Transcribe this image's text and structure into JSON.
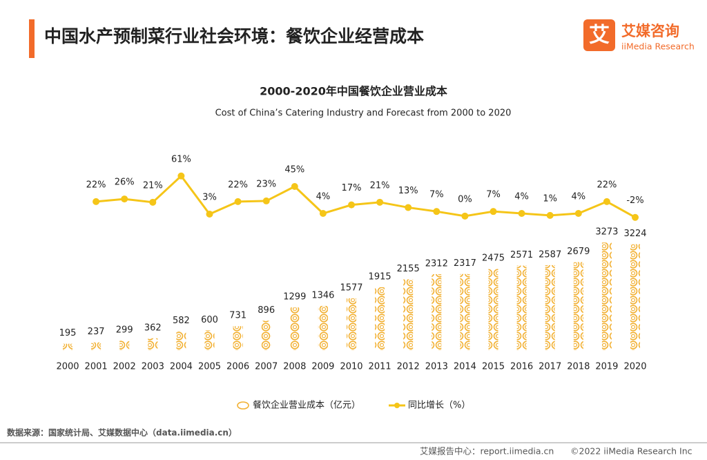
{
  "header": {
    "title": "中国水产预制菜行业社会环境：餐饮企业经营成本",
    "logo_icon": "艾",
    "logo_name": "艾媒咨询",
    "logo_sub": "iiMedia Research"
  },
  "chart_data": {
    "type": "bar-line",
    "title": "2000-2020年中国餐饮企业营业成本",
    "subtitle": "Cost of China’s Catering Industry and Forecast from 2000 to 2020",
    "categories": [
      "2000",
      "2001",
      "2002",
      "2003",
      "2004",
      "2005",
      "2006",
      "2007",
      "2008",
      "2009",
      "2010",
      "2011",
      "2012",
      "2013",
      "2014",
      "2015",
      "2016",
      "2017",
      "2018",
      "2019",
      "2020"
    ],
    "series": [
      {
        "name": "餐饮企业营业成本（亿元）",
        "type": "bar",
        "color": "#f2b134",
        "values": [
          195,
          237,
          299,
          362,
          582,
          600,
          731,
          896,
          1299,
          1346,
          1577,
          1915,
          2155,
          2312,
          2317,
          2475,
          2571,
          2587,
          2679,
          3273,
          3224
        ]
      },
      {
        "name": "同比增长（%）",
        "type": "line",
        "axis": "y2",
        "color": "#f5c518",
        "values": [
          null,
          22,
          26,
          21,
          61,
          3,
          22,
          23,
          45,
          4,
          17,
          21,
          13,
          7,
          0,
          7,
          4,
          1,
          4,
          22,
          -2
        ],
        "value_labels": [
          null,
          "22%",
          "26%",
          "21%",
          "61%",
          "3%",
          "22%",
          "23%",
          "45%",
          "4%",
          "17%",
          "21%",
          "13%",
          "7%",
          "0%",
          "7%",
          "4%",
          "1%",
          "4%",
          "22%",
          "-2%"
        ]
      }
    ],
    "ylim": [
      0,
      5400
    ],
    "y2lim": [
      -204,
      66
    ]
  },
  "footer": {
    "source": "数据来源：国家统计局、艾媒数据中心（data.iimedia.cn）",
    "report": "艾媒报告中心：report.iimedia.cn",
    "copyright": "©2022  iiMedia Research  Inc"
  }
}
